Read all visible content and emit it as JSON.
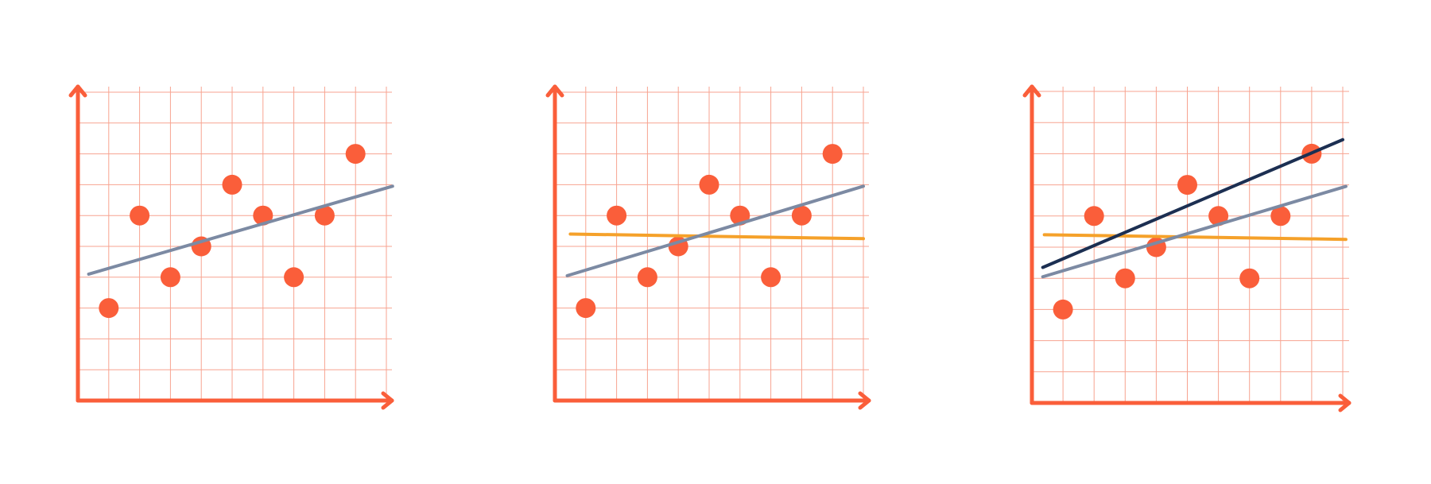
{
  "colors": {
    "background": "#ffffff",
    "axis": "#fa5e3a",
    "grid": "#f7a390",
    "points": "#fa5e3a",
    "line_gray": "#7c8aa3",
    "line_orange": "#f5a12a",
    "line_navy": "#1c2f52"
  },
  "chart_data": [
    {
      "type": "scatter",
      "title": "",
      "xlabel": "",
      "ylabel": "",
      "xlim": [
        0,
        10
      ],
      "ylim": [
        0,
        10
      ],
      "grid": true,
      "points": [
        {
          "x": 1,
          "y": 3
        },
        {
          "x": 2,
          "y": 6
        },
        {
          "x": 3,
          "y": 4
        },
        {
          "x": 4,
          "y": 5
        },
        {
          "x": 5,
          "y": 7
        },
        {
          "x": 6,
          "y": 6
        },
        {
          "x": 7,
          "y": 4
        },
        {
          "x": 8,
          "y": 6
        },
        {
          "x": 9,
          "y": 8
        }
      ],
      "lines": [
        {
          "color_key": "line_gray",
          "points": [
            [
              0.35,
              4.1
            ],
            [
              10.2,
              6.95
            ]
          ]
        }
      ]
    },
    {
      "type": "scatter",
      "title": "",
      "xlabel": "",
      "ylabel": "",
      "xlim": [
        0,
        10
      ],
      "ylim": [
        0,
        10
      ],
      "grid": true,
      "points": [
        {
          "x": 1,
          "y": 3
        },
        {
          "x": 2,
          "y": 6
        },
        {
          "x": 3,
          "y": 4
        },
        {
          "x": 4,
          "y": 5
        },
        {
          "x": 5,
          "y": 7
        },
        {
          "x": 6,
          "y": 6
        },
        {
          "x": 7,
          "y": 4
        },
        {
          "x": 8,
          "y": 6
        },
        {
          "x": 9,
          "y": 8
        }
      ],
      "lines": [
        {
          "color_key": "line_orange",
          "points": [
            [
              0.5,
              5.4
            ],
            [
              10.0,
              5.25
            ]
          ]
        },
        {
          "color_key": "line_gray",
          "points": [
            [
              0.4,
              4.05
            ],
            [
              10.0,
              6.95
            ]
          ]
        }
      ]
    },
    {
      "type": "scatter",
      "title": "",
      "xlabel": "",
      "ylabel": "",
      "xlim": [
        0,
        10
      ],
      "ylim": [
        0,
        10
      ],
      "grid": true,
      "points": [
        {
          "x": 1,
          "y": 3
        },
        {
          "x": 2,
          "y": 6
        },
        {
          "x": 3,
          "y": 4
        },
        {
          "x": 4,
          "y": 5
        },
        {
          "x": 5,
          "y": 7
        },
        {
          "x": 6,
          "y": 6
        },
        {
          "x": 7,
          "y": 4
        },
        {
          "x": 8,
          "y": 6
        },
        {
          "x": 9,
          "y": 8
        }
      ],
      "lines": [
        {
          "color_key": "line_orange",
          "points": [
            [
              0.4,
              5.4
            ],
            [
              10.1,
              5.25
            ]
          ]
        },
        {
          "color_key": "line_gray",
          "points": [
            [
              0.35,
              4.05
            ],
            [
              10.1,
              6.95
            ]
          ]
        },
        {
          "color_key": "line_navy",
          "points": [
            [
              0.35,
              4.35
            ],
            [
              10.0,
              8.45
            ]
          ]
        }
      ]
    }
  ]
}
